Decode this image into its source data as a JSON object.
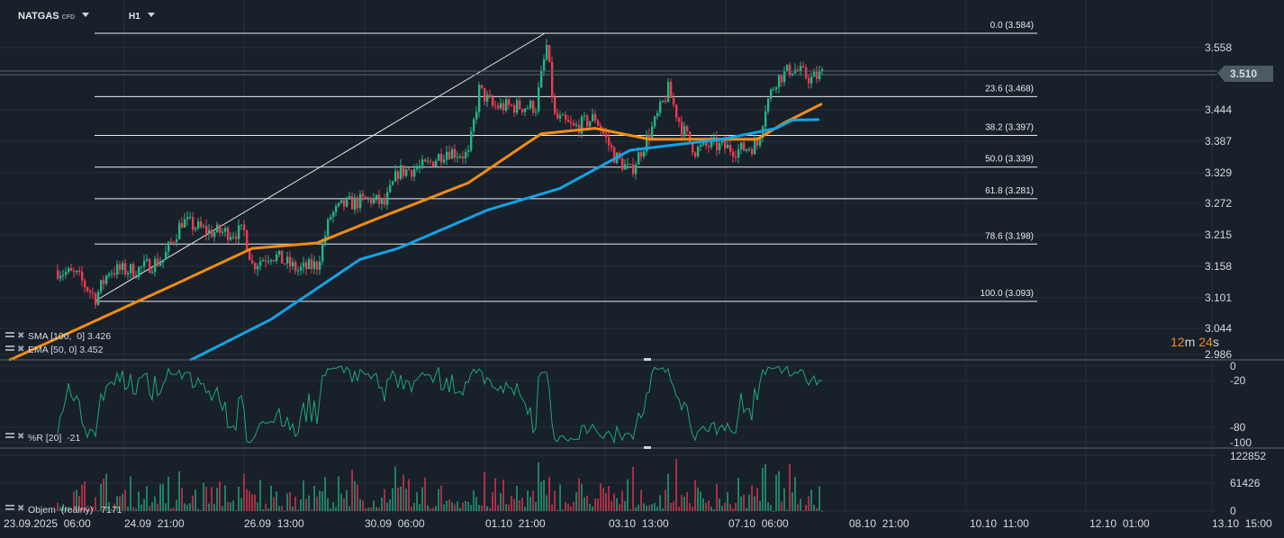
{
  "header": {
    "symbol": "NATGAS",
    "symbol_type": "CFD",
    "timeframe": "H1"
  },
  "colors": {
    "bg": "#18202a",
    "up": "#25b583",
    "down": "#f23a4f",
    "ema": "#f28c12",
    "sma": "#12a3e6",
    "wr": "#1fa877",
    "grid": "#26303a",
    "price_label_bg": "#4b5a65"
  },
  "price_axis": {
    "labels": [
      "3.558",
      "3.444",
      "3.387",
      "3.329",
      "3.272",
      "3.215",
      "3.158",
      "3.101",
      "3.044",
      "2.986"
    ],
    "current": "3.510"
  },
  "countdown": {
    "minutes": "12",
    "m": "m",
    "seconds": "24",
    "s": "s"
  },
  "wr_axis": {
    "labels": [
      "0",
      "-20",
      "-80",
      "-100"
    ]
  },
  "vol_axis": {
    "labels": [
      "122852",
      "61426",
      "0"
    ]
  },
  "time_axis": {
    "labels": [
      "23.09.2025  06:00",
      "24.09  21:00",
      "26.09  13:00",
      "30.09  06:00",
      "01.10  21:00",
      "03.10  13:00",
      "07.10  06:00",
      "08.10  21:00",
      "10.10  11:00",
      "12.10  01:00",
      "13.10  15:00"
    ]
  },
  "fib_levels": [
    {
      "label": "0.0 (3.584)",
      "price": 3.584
    },
    {
      "label": "23.6 (3.468)",
      "price": 3.468
    },
    {
      "label": "38.2 (3.397)",
      "price": 3.397
    },
    {
      "label": "50.0 (3.339)",
      "price": 3.339
    },
    {
      "label": "61.8 (3.281)",
      "price": 3.281
    },
    {
      "label": "78.6 (3.198)",
      "price": 3.198
    },
    {
      "label": "100.0 (3.093)",
      "price": 3.093
    }
  ],
  "legends": {
    "sma": "SMA [100,  0] 3.426",
    "ema": "EMA [50, 0] 3.452",
    "wr": "%R [20]  -21",
    "volume": "Objem  (reálný)   7171"
  },
  "chart_data": {
    "type": "candlestick",
    "price_range": [
      2.986,
      3.584
    ],
    "close_waypoints": [
      [
        0,
        3.15
      ],
      [
        7,
        3.14
      ],
      [
        14,
        3.1
      ],
      [
        19,
        3.15
      ],
      [
        29,
        3.15
      ],
      [
        39,
        3.17
      ],
      [
        46,
        3.24
      ],
      [
        56,
        3.22
      ],
      [
        69,
        3.22
      ],
      [
        72,
        3.16
      ],
      [
        79,
        3.18
      ],
      [
        89,
        3.15
      ],
      [
        96,
        3.16
      ],
      [
        101,
        3.25
      ],
      [
        106,
        3.27
      ],
      [
        116,
        3.28
      ],
      [
        121,
        3.27
      ],
      [
        126,
        3.33
      ],
      [
        136,
        3.34
      ],
      [
        144,
        3.37
      ],
      [
        152,
        3.36
      ],
      [
        156,
        3.48
      ],
      [
        161,
        3.45
      ],
      [
        172,
        3.45
      ],
      [
        177,
        3.45
      ],
      [
        181,
        3.56
      ],
      [
        184,
        3.43
      ],
      [
        191,
        3.41
      ],
      [
        199,
        3.43
      ],
      [
        206,
        3.36
      ],
      [
        212,
        3.33
      ],
      [
        216,
        3.37
      ],
      [
        221,
        3.42
      ],
      [
        226,
        3.48
      ],
      [
        231,
        3.41
      ],
      [
        236,
        3.37
      ],
      [
        242,
        3.38
      ],
      [
        252,
        3.37
      ],
      [
        259,
        3.38
      ],
      [
        262,
        3.45
      ],
      [
        266,
        3.5
      ],
      [
        272,
        3.52
      ],
      [
        279,
        3.5
      ],
      [
        283,
        3.51
      ]
    ],
    "ema_waypoints": [
      [
        -18,
        2.985
      ],
      [
        46,
        3.13
      ],
      [
        72,
        3.19
      ],
      [
        96,
        3.2
      ],
      [
        116,
        3.24
      ],
      [
        152,
        3.31
      ],
      [
        179,
        3.4
      ],
      [
        199,
        3.41
      ],
      [
        219,
        3.39
      ],
      [
        246,
        3.39
      ],
      [
        259,
        3.39
      ],
      [
        269,
        3.42
      ],
      [
        283,
        3.455
      ]
    ],
    "sma_waypoints": [
      [
        49,
        2.985
      ],
      [
        79,
        3.06
      ],
      [
        112,
        3.17
      ],
      [
        126,
        3.19
      ],
      [
        159,
        3.26
      ],
      [
        186,
        3.3
      ],
      [
        212,
        3.37
      ],
      [
        246,
        3.39
      ],
      [
        266,
        3.41
      ],
      [
        272,
        3.425
      ],
      [
        282,
        3.426
      ]
    ],
    "volume_max": 122852,
    "wr_period": 20
  }
}
